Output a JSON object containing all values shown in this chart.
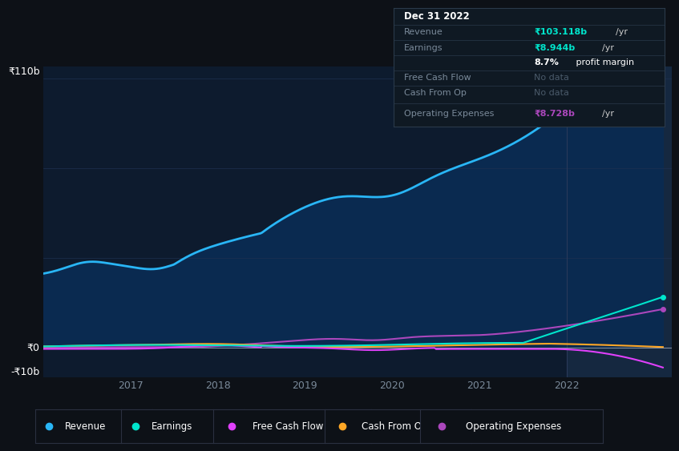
{
  "background_color": "#0d1117",
  "plot_bg_color": "#0d1b2e",
  "plot_bg_highlight": "#152035",
  "y_label_top": "₹110b",
  "y_label_zero": "₹0",
  "y_label_neg": "-₹10b",
  "x_ticks": [
    2017,
    2018,
    2019,
    2020,
    2021,
    2022
  ],
  "revenue_color": "#29b6f6",
  "earnings_color": "#00e5cc",
  "free_cash_flow_color": "#e040fb",
  "cash_from_op_color": "#ffa726",
  "operating_expenses_color": "#ab47bc",
  "fill_color": "#0a2a50",
  "highlight_fill_color": "#152840",
  "zero_line_color": "#ffffff",
  "grid_line_color": "#1e3050",
  "tooltip_bg": "#0f1923",
  "tooltip_border": "#2a3a4a",
  "tooltip_date": "Dec 31 2022",
  "tooltip_label_color": "#7a8a9a",
  "tooltip_nodata_color": "#4a5a6a",
  "tooltip_white": "#cccccc",
  "legend_items": [
    "Revenue",
    "Earnings",
    "Free Cash Flow",
    "Cash From Op",
    "Operating Expenses"
  ],
  "legend_colors": [
    "#29b6f6",
    "#00e5cc",
    "#e040fb",
    "#ffa726",
    "#ab47bc"
  ],
  "legend_bg": "#0d1117",
  "legend_border": "#2a3040",
  "ylim": [
    -12,
    115
  ],
  "xlim_start": 2016.0,
  "xlim_end": 2023.2,
  "highlight_x": 2022.0
}
